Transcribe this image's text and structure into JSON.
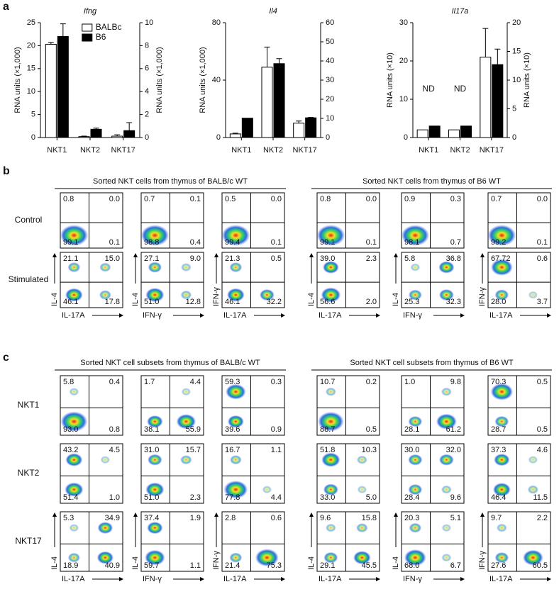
{
  "panel_labels": [
    "a",
    "b",
    "c"
  ],
  "chart_data": [
    {
      "type": "bar",
      "title": "Ifng",
      "y_label": "RNA units (×1,000)",
      "y2_label": "RNA units (×1,000)",
      "categories": [
        "NKT1",
        "NKT2",
        "NKT17"
      ],
      "series": [
        {
          "name": "BALBc",
          "color": "#ffffff",
          "values": [
            20.3,
            0.2,
            0.3
          ],
          "errors": [
            0.4,
            0.1,
            0.3
          ]
        },
        {
          "name": "B6",
          "color": "#000000",
          "axis": "y2",
          "values": [
            8.8,
            0.72,
            0.6
          ],
          "errors": [
            1.1,
            0.1,
            0.7
          ]
        }
      ],
      "ylim": [
        0,
        25
      ],
      "yticks": [
        0,
        5,
        10,
        15,
        20,
        25
      ],
      "y2lim": [
        0,
        10
      ],
      "y2ticks": [
        0,
        2,
        4,
        6,
        8,
        10
      ],
      "legend": "upper right"
    },
    {
      "type": "bar",
      "title": "Il4",
      "y_label": "RNA units (×1,000)",
      "categories": [
        "NKT1",
        "NKT2",
        "NKT17"
      ],
      "series": [
        {
          "color": "#ffffff",
          "values": [
            2.5,
            49,
            10
          ],
          "errors": [
            0.5,
            14,
            1.5
          ]
        },
        {
          "color": "#000000",
          "axis": "y2",
          "values": [
            10.1,
            38.6,
            10.3
          ],
          "errors": [
            0,
            2.6,
            0.2
          ]
        }
      ],
      "ylim": [
        0,
        80
      ],
      "yticks": [
        0,
        40,
        80
      ],
      "y2lim": [
        0,
        60
      ],
      "y2ticks": [
        0,
        10,
        20,
        30,
        40,
        50,
        60
      ]
    },
    {
      "type": "bar",
      "title": "Il17a",
      "y_label": "RNA units (×10)",
      "y2_label": "RNA units (×10)",
      "categories": [
        "NKT1",
        "NKT2",
        "NKT17"
      ],
      "series": [
        {
          "color": "#ffffff",
          "values": [
            2,
            2,
            21
          ],
          "errors": [
            0,
            0,
            7.5
          ]
        },
        {
          "color": "#000000",
          "axis": "y2",
          "values": [
            2,
            2,
            12.7
          ],
          "errors": [
            0,
            0,
            2.7
          ]
        }
      ],
      "ylim": [
        0,
        30
      ],
      "yticks": [
        0,
        10,
        20,
        30
      ],
      "y2lim": [
        0,
        20
      ],
      "y2ticks": [
        0,
        5,
        10,
        15,
        20
      ],
      "annotations": [
        {
          "text": "ND",
          "x": "NKT1"
        },
        {
          "text": "ND",
          "x": "NKT2"
        }
      ]
    }
  ],
  "panel_b": {
    "row_labels": [
      "Control",
      "Stimulated"
    ],
    "groups": [
      {
        "title": "Sorted NKT cells from thymus of BALB/c WT",
        "columns": [
          {
            "x_label": "IL-17A",
            "y_label": "IL-4",
            "rows": [
              [
                "0.8",
                "0.0",
                "99.1",
                "0.1"
              ],
              [
                "21.1",
                "15.0",
                "46.1",
                "17.8"
              ]
            ]
          },
          {
            "x_label": "IFN-γ",
            "y_label": "IL-4",
            "rows": [
              [
                "0.7",
                "0.1",
                "98.8",
                "0.4"
              ],
              [
                "27.1",
                "9.0",
                "51.0",
                "12.8"
              ]
            ]
          },
          {
            "x_label": "IL-17A",
            "y_label": "IFN-γ",
            "rows": [
              [
                "0.5",
                "0.0",
                "99.4",
                "0.1"
              ],
              [
                "21.3",
                "0.5",
                "46.1",
                "32.2"
              ]
            ]
          }
        ]
      },
      {
        "title": "Sorted NKT cells from thymus of B6 WT",
        "columns": [
          {
            "x_label": "IL-17A",
            "y_label": "IL-4",
            "rows": [
              [
                "0.8",
                "0.0",
                "99.1",
                "0.1"
              ],
              [
                "39.0",
                "2.3",
                "56.6",
                "2.0"
              ]
            ]
          },
          {
            "x_label": "IFN-γ",
            "y_label": "IL-4",
            "rows": [
              [
                "0.9",
                "0.3",
                "98.1",
                "0.7"
              ],
              [
                "5.8",
                "36.8",
                "25.3",
                "32.3"
              ]
            ]
          },
          {
            "x_label": "IL-17A",
            "y_label": "IFN-γ",
            "rows": [
              [
                "0.7",
                "0.0",
                "99.2",
                "0.1"
              ],
              [
                "67.72",
                "0.6",
                "28.0",
                "3.7"
              ]
            ]
          }
        ]
      }
    ]
  },
  "panel_c": {
    "row_labels": [
      "NKT1",
      "NKT2",
      "NKT17"
    ],
    "groups": [
      {
        "title": "Sorted NKT cell subsets from thymus of BALB/c WT",
        "columns": [
          {
            "x_label": "IL-17A",
            "y_label": "IL-4",
            "rows": [
              [
                "5.8",
                "0.4",
                "93.0",
                "0.8"
              ],
              [
                "43.2",
                "4.5",
                "51.4",
                "1.0"
              ],
              [
                "5.3",
                "34.9",
                "18.9",
                "40.9"
              ]
            ]
          },
          {
            "x_label": "IFN-γ",
            "y_label": "IL-4",
            "rows": [
              [
                "1.7",
                "4.4",
                "38.1",
                "55.9"
              ],
              [
                "31.0",
                "15.7",
                "51.0",
                "2.3"
              ],
              [
                "37.4",
                "1.9",
                "59.7",
                "1.1"
              ]
            ]
          },
          {
            "x_label": "IL-17A",
            "y_label": "IFN-γ",
            "rows": [
              [
                "59.3",
                "0.3",
                "39.6",
                "0.9"
              ],
              [
                "16.7",
                "1.1",
                "77.8",
                "4.4"
              ],
              [
                "2.8",
                "0.6",
                "21.4",
                "75.3"
              ]
            ]
          }
        ]
      },
      {
        "title": "Sorted NKT cell subsets from thymus of B6 WT",
        "columns": [
          {
            "x_label": "IL-17A",
            "y_label": "IL-4",
            "rows": [
              [
                "10.7",
                "0.2",
                "88.7",
                "0.5"
              ],
              [
                "51.8",
                "10.3",
                "33.0",
                "5.0"
              ],
              [
                "9.6",
                "15.8",
                "29.1",
                "45.5"
              ]
            ]
          },
          {
            "x_label": "IFN-γ",
            "y_label": "IL-4",
            "rows": [
              [
                "1.0",
                "9.8",
                "28.1",
                "61.2"
              ],
              [
                "30.0",
                "32.0",
                "28.4",
                "9.6"
              ],
              [
                "20.3",
                "5.1",
                "68.0",
                "6.7"
              ]
            ]
          },
          {
            "x_label": "IL-17A",
            "y_label": "IFN-γ",
            "rows": [
              [
                "70.3",
                "0.5",
                "28.7",
                "0.5"
              ],
              [
                "37.3",
                "4.6",
                "46.4",
                "11.5"
              ],
              [
                "9.7",
                "2.2",
                "27.6",
                "60.5"
              ]
            ]
          }
        ]
      }
    ]
  }
}
